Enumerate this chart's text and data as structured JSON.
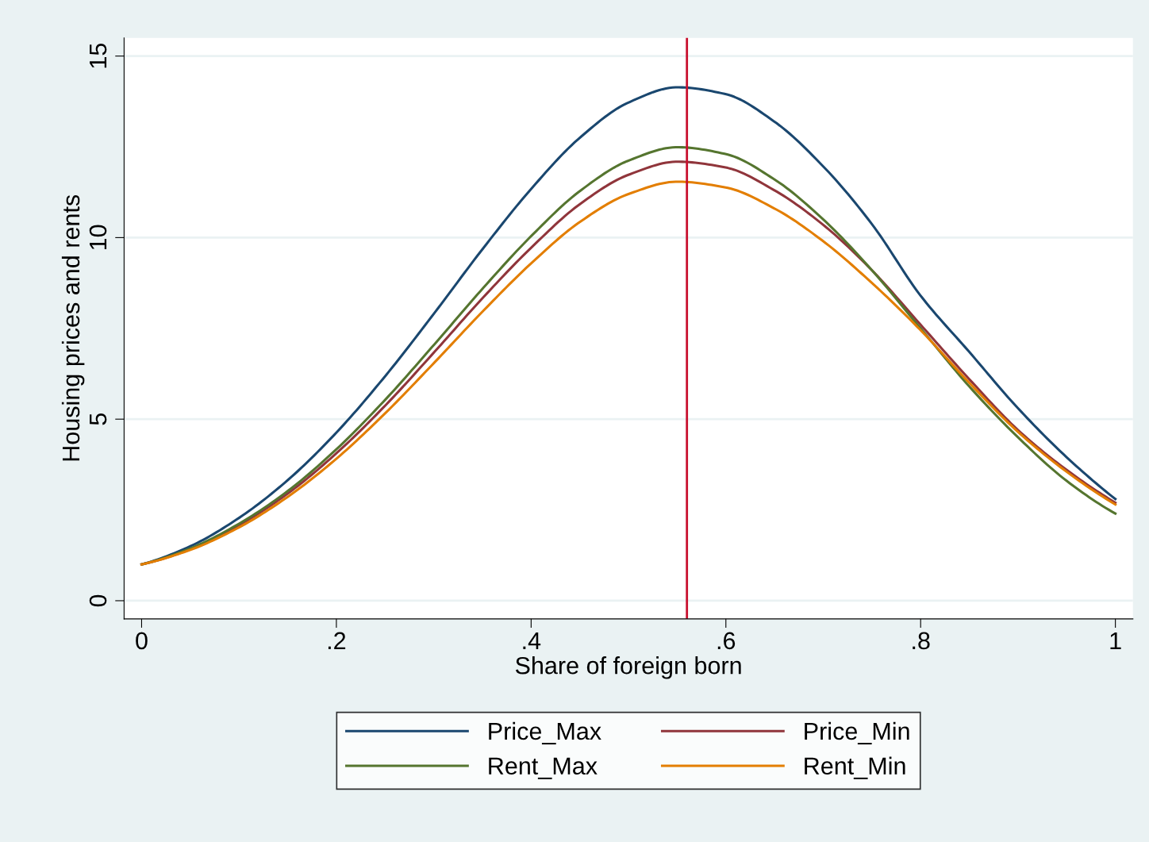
{
  "chart_data": {
    "type": "line",
    "xlabel": "Share of foreign born",
    "ylabel": "Housing prices and rents",
    "x": [
      0,
      0.05,
      0.1,
      0.15,
      0.2,
      0.25,
      0.3,
      0.35,
      0.4,
      0.45,
      0.5,
      0.55,
      0.6,
      0.65,
      0.7,
      0.75,
      0.8,
      0.85,
      0.9,
      0.95,
      1
    ],
    "series": [
      {
        "name": "Price_Max",
        "color": "#1a476f",
        "values": [
          1.0,
          1.5,
          2.28,
          3.32,
          4.63,
          6.18,
          7.9,
          9.68,
          11.34,
          12.75,
          13.72,
          14.14,
          13.95,
          13.19,
          11.96,
          10.37,
          8.4,
          6.85,
          5.3,
          3.95,
          2.8
        ]
      },
      {
        "name": "Price_Min",
        "color": "#90353b",
        "values": [
          1.0,
          1.42,
          2.08,
          2.95,
          4.06,
          5.37,
          6.83,
          8.33,
          9.72,
          10.92,
          11.73,
          12.09,
          11.93,
          11.3,
          10.35,
          9.1,
          7.6,
          6.1,
          4.7,
          3.6,
          2.7
        ]
      },
      {
        "name": "Rent_Max",
        "color": "#55752f",
        "values": [
          1.0,
          1.44,
          2.12,
          3.02,
          4.17,
          5.53,
          7.04,
          8.59,
          10.04,
          11.28,
          12.12,
          12.49,
          12.3,
          11.6,
          10.5,
          9.1,
          7.5,
          5.9,
          4.5,
          3.3,
          2.4
        ]
      },
      {
        "name": "Rent_Min",
        "color": "#e37e00",
        "values": [
          1.0,
          1.4,
          2.02,
          2.86,
          3.91,
          5.16,
          6.54,
          7.96,
          9.29,
          10.43,
          11.2,
          11.54,
          11.38,
          10.8,
          9.9,
          8.75,
          7.45,
          6.0,
          4.65,
          3.55,
          2.65
        ]
      }
    ],
    "xlim": [
      -0.018,
      1.018
    ],
    "xticks": [
      {
        "value": 0,
        "label": "0"
      },
      {
        "value": 0.2,
        "label": ".2"
      },
      {
        "value": 0.4,
        "label": ".4"
      },
      {
        "value": 0.6,
        "label": ".6"
      },
      {
        "value": 0.8,
        "label": ".8"
      },
      {
        "value": 1,
        "label": "1"
      }
    ],
    "ylim": [
      -0.5,
      15.5
    ],
    "yticks": [
      0,
      5,
      10,
      15
    ],
    "ref_lines": [
      {
        "axis": "x",
        "value": 0.56,
        "color": "#c8102e"
      }
    ],
    "grid": "y",
    "legend": "bottom"
  }
}
